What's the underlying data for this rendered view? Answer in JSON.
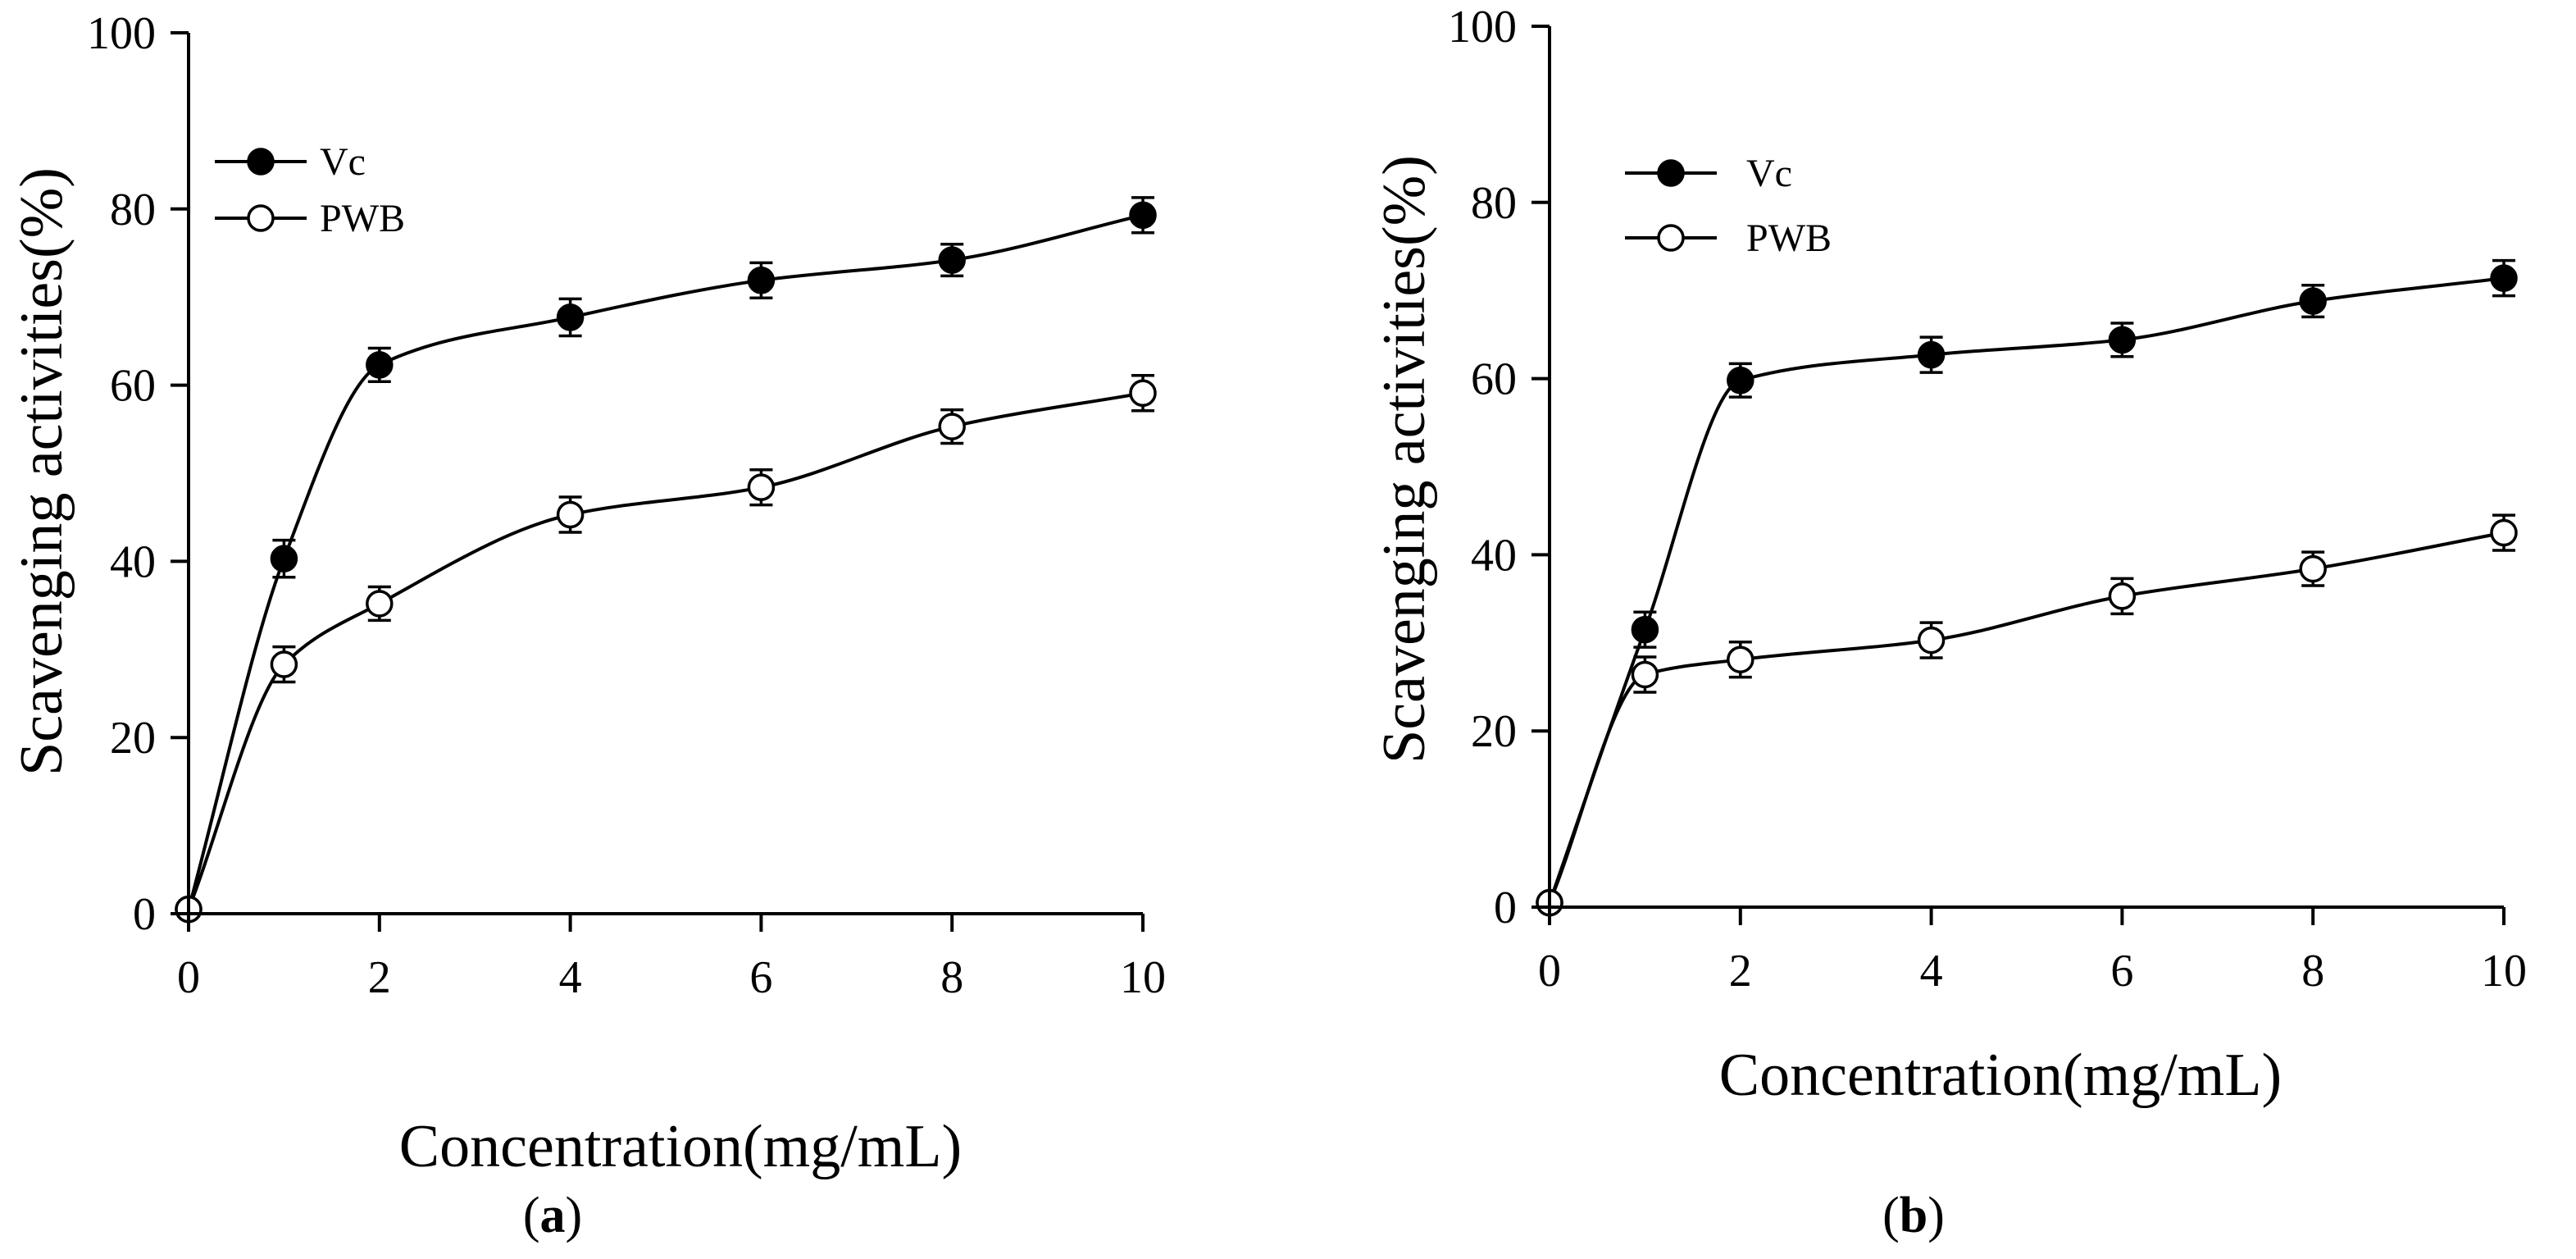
{
  "chart_data": [
    {
      "type": "line",
      "panel_label": "a",
      "xlabel": "Concentration(mg/mL)",
      "ylabel": "Scavenging activities(%)",
      "xlim": [
        0,
        10
      ],
      "ylim": [
        0,
        100
      ],
      "xticks": [
        0,
        2,
        4,
        6,
        8,
        10
      ],
      "yticks": [
        0,
        20,
        40,
        60,
        80,
        100
      ],
      "legend_position": "top-left",
      "grid": false,
      "series": [
        {
          "name": "Vc",
          "marker": "filled-circle",
          "x": [
            0,
            1,
            2,
            4,
            6,
            8,
            10
          ],
          "y": [
            0.5,
            40.3,
            62.3,
            67.7,
            71.9,
            74.2,
            79.3
          ],
          "err": [
            0,
            2.1,
            1.9,
            2.1,
            2.0,
            1.8,
            2.0
          ]
        },
        {
          "name": "PWB",
          "marker": "open-circle",
          "x": [
            0,
            1,
            2,
            4,
            6,
            8,
            10
          ],
          "y": [
            0.5,
            28.3,
            35.2,
            45.3,
            48.4,
            55.3,
            59.1
          ],
          "err": [
            0,
            2.0,
            1.9,
            2.0,
            2.0,
            1.9,
            2.0
          ]
        }
      ]
    },
    {
      "type": "line",
      "panel_label": "b",
      "xlabel": "Concentration(mg/mL)",
      "ylabel": "Scavenging activities(%)",
      "xlim": [
        0,
        10
      ],
      "ylim": [
        0,
        100
      ],
      "xticks": [
        0,
        2,
        4,
        6,
        8,
        10
      ],
      "yticks": [
        0,
        20,
        40,
        60,
        80,
        100
      ],
      "legend_position": "top-left",
      "grid": false,
      "series": [
        {
          "name": "Vc",
          "marker": "filled-circle",
          "x": [
            0,
            1,
            2,
            4,
            6,
            8,
            10
          ],
          "y": [
            0.5,
            31.5,
            59.8,
            62.7,
            64.4,
            68.8,
            71.4
          ],
          "err": [
            0,
            2.0,
            1.9,
            2.0,
            1.9,
            1.8,
            2.0
          ]
        },
        {
          "name": "PWB",
          "marker": "open-circle",
          "x": [
            0,
            1,
            2,
            4,
            6,
            8,
            10
          ],
          "y": [
            0.5,
            26.4,
            28.1,
            30.3,
            35.3,
            38.4,
            42.5
          ],
          "err": [
            0,
            2.0,
            2.0,
            2.0,
            2.0,
            1.9,
            2.0
          ]
        }
      ]
    }
  ]
}
